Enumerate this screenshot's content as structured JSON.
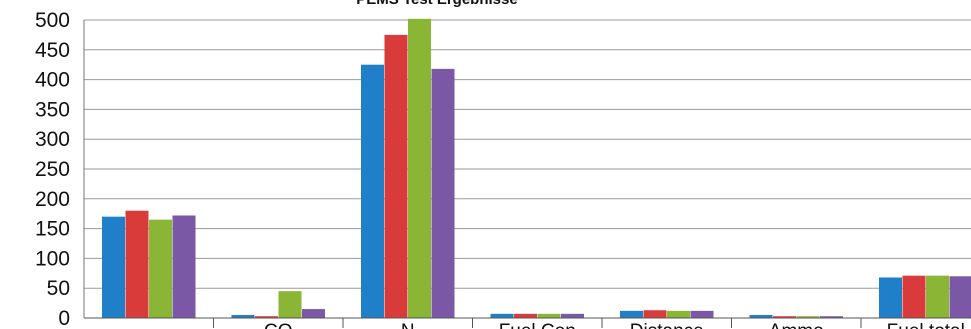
{
  "chart_data": {
    "type": "bar",
    "title": "PEMS Test Ergebnisse",
    "categories": [
      "",
      "CO",
      "N",
      "Fuel Con",
      "Distance",
      "Ammo",
      "Fuel total"
    ],
    "series": [
      {
        "values": [
          170,
          5,
          425,
          7,
          12,
          5,
          68
        ],
        "color": "#1f7fc8"
      },
      {
        "values": [
          180,
          3,
          475,
          7,
          13,
          3,
          71
        ],
        "color": "#d93a3a"
      },
      {
        "values": [
          165,
          45,
          505,
          7,
          12,
          3,
          71
        ],
        "color": "#8ab535"
      },
      {
        "values": [
          172,
          15,
          418,
          7,
          12,
          3,
          70
        ],
        "color": "#7b58a6"
      }
    ],
    "yticks": [
      0,
      50,
      100,
      150,
      200,
      250,
      300,
      350,
      400,
      450,
      500
    ],
    "ylim": [
      0,
      500
    ],
    "grid": true,
    "xlabel": "",
    "ylabel": ""
  }
}
